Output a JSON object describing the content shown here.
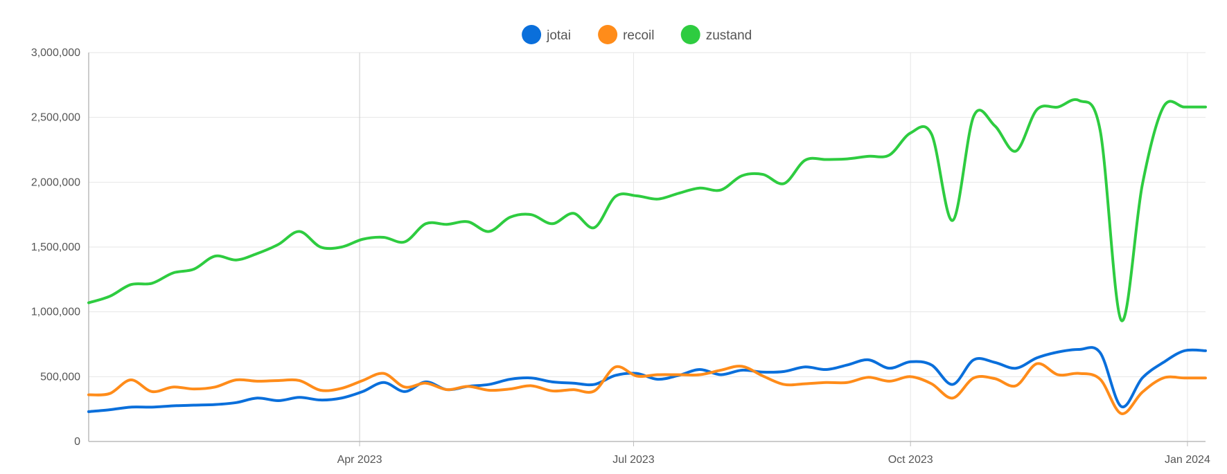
{
  "chart_data": {
    "type": "line",
    "title": "",
    "xlabel": "",
    "ylabel": "",
    "grid": true,
    "legend_position": "top-center",
    "x": [
      "2023-01-01",
      "2023-01-08",
      "2023-01-15",
      "2023-01-22",
      "2023-01-29",
      "2023-02-05",
      "2023-02-12",
      "2023-02-19",
      "2023-02-26",
      "2023-03-05",
      "2023-03-12",
      "2023-03-19",
      "2023-03-26",
      "2023-04-02",
      "2023-04-09",
      "2023-04-16",
      "2023-04-23",
      "2023-04-30",
      "2023-05-07",
      "2023-05-14",
      "2023-05-21",
      "2023-05-28",
      "2023-06-04",
      "2023-06-11",
      "2023-06-18",
      "2023-06-25",
      "2023-07-02",
      "2023-07-09",
      "2023-07-16",
      "2023-07-23",
      "2023-07-30",
      "2023-08-06",
      "2023-08-13",
      "2023-08-20",
      "2023-08-27",
      "2023-09-03",
      "2023-09-10",
      "2023-09-17",
      "2023-09-24",
      "2023-10-01",
      "2023-10-08",
      "2023-10-15",
      "2023-10-22",
      "2023-10-29",
      "2023-11-05",
      "2023-11-12",
      "2023-11-19",
      "2023-11-26",
      "2023-12-03",
      "2023-12-10",
      "2023-12-17",
      "2023-12-24",
      "2023-12-31",
      "2024-01-07"
    ],
    "xticks": [
      {
        "date": "2023-04-01",
        "label": "Apr 2023"
      },
      {
        "date": "2023-07-01",
        "label": "Jul 2023"
      },
      {
        "date": "2023-10-01",
        "label": "Oct 2023"
      },
      {
        "date": "2024-01-01",
        "label": "Jan 2024"
      }
    ],
    "yticks": [
      {
        "value": 0,
        "label": "0"
      },
      {
        "value": 500000,
        "label": "500,000"
      },
      {
        "value": 1000000,
        "label": "1,000,000"
      },
      {
        "value": 1500000,
        "label": "1,500,000"
      },
      {
        "value": 2000000,
        "label": "2,000,000"
      },
      {
        "value": 2500000,
        "label": "2,500,000"
      },
      {
        "value": 3000000,
        "label": "3,000,000"
      }
    ],
    "ylim": [
      0,
      3000000
    ],
    "xlim": [
      "2023-01-01",
      "2024-01-07"
    ],
    "series": [
      {
        "name": "jotai",
        "color": "#0a6fdb",
        "values": [
          230000,
          245000,
          265000,
          265000,
          275000,
          280000,
          285000,
          300000,
          335000,
          315000,
          340000,
          320000,
          335000,
          385000,
          455000,
          385000,
          460000,
          400000,
          425000,
          440000,
          480000,
          490000,
          460000,
          450000,
          440000,
          510000,
          525000,
          480000,
          510000,
          555000,
          515000,
          550000,
          535000,
          540000,
          575000,
          555000,
          590000,
          630000,
          565000,
          615000,
          590000,
          440000,
          630000,
          610000,
          565000,
          645000,
          690000,
          710000,
          685000,
          270000,
          490000,
          610000,
          700000,
          700000
        ]
      },
      {
        "name": "recoil",
        "color": "#ff8c1a",
        "values": [
          360000,
          370000,
          475000,
          385000,
          420000,
          405000,
          420000,
          475000,
          465000,
          470000,
          470000,
          395000,
          410000,
          470000,
          525000,
          420000,
          450000,
          400000,
          425000,
          395000,
          405000,
          430000,
          390000,
          400000,
          390000,
          575000,
          505000,
          515000,
          515000,
          515000,
          550000,
          580000,
          505000,
          440000,
          445000,
          455000,
          455000,
          495000,
          465000,
          500000,
          445000,
          335000,
          490000,
          485000,
          430000,
          600000,
          515000,
          525000,
          480000,
          215000,
          380000,
          490000,
          490000,
          490000
        ]
      },
      {
        "name": "zustand",
        "color": "#2ecc40",
        "values": [
          1070000,
          1120000,
          1210000,
          1220000,
          1300000,
          1330000,
          1430000,
          1400000,
          1450000,
          1520000,
          1620000,
          1500000,
          1500000,
          1560000,
          1575000,
          1540000,
          1680000,
          1675000,
          1695000,
          1620000,
          1730000,
          1750000,
          1680000,
          1760000,
          1650000,
          1890000,
          1895000,
          1870000,
          1915000,
          1955000,
          1940000,
          2050000,
          2060000,
          1990000,
          2170000,
          2175000,
          2180000,
          2200000,
          2210000,
          2380000,
          2370000,
          1705000,
          2510000,
          2435000,
          2240000,
          2560000,
          2580000,
          2630000,
          2400000,
          935000,
          1980000,
          2580000,
          2580000,
          2580000
        ]
      }
    ]
  }
}
